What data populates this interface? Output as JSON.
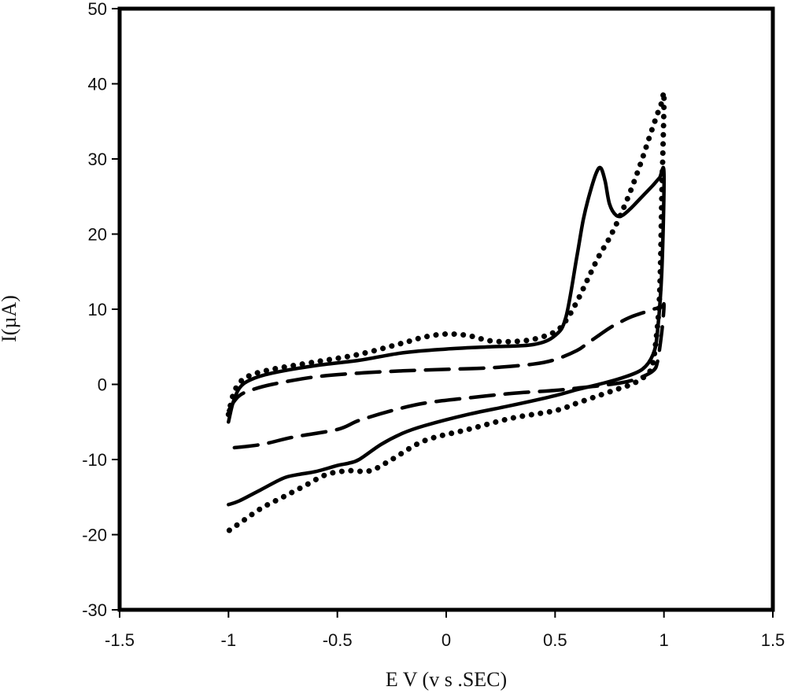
{
  "chart_data": {
    "type": "line",
    "xlabel": "E V (v s .SEC)",
    "ylabel": "I(µA)",
    "xlim": [
      -1.5,
      1.5
    ],
    "ylim": [
      -30,
      50
    ],
    "xticks": [
      "-1.5",
      "-1",
      "-0.5",
      "0",
      "0.5",
      "1",
      "1.5"
    ],
    "yticks": [
      "50",
      "40",
      "30",
      "20",
      "10",
      "0",
      "-10",
      "-20",
      "-30"
    ],
    "grid": false,
    "legend": "none",
    "series": [
      {
        "style": "solid",
        "x": [
          -1.0,
          -0.98,
          -0.95,
          -0.9,
          -0.8,
          -0.6,
          -0.4,
          -0.2,
          0.0,
          0.2,
          0.4,
          0.5,
          0.55,
          0.6,
          0.63,
          0.66,
          0.69,
          0.71,
          0.73,
          0.75,
          0.78,
          0.81,
          0.85,
          0.9,
          0.95,
          0.98,
          1.0,
          0.99,
          0.97,
          0.95,
          0.9,
          0.8,
          0.7,
          0.6,
          0.5,
          0.3,
          0.1,
          -0.1,
          -0.2,
          -0.3,
          -0.4,
          -0.45,
          -0.5,
          -0.6,
          -0.68,
          -0.75,
          -0.85,
          -0.95,
          -1.0
        ],
        "y": [
          -5.0,
          -2.5,
          -0.5,
          0.6,
          1.5,
          2.5,
          3.2,
          4.2,
          4.7,
          5.0,
          5.3,
          6.5,
          9.0,
          17.0,
          22.0,
          25.5,
          28.2,
          28.8,
          27.0,
          24.0,
          22.5,
          22.5,
          23.5,
          25.0,
          26.5,
          27.5,
          28.0,
          15.0,
          7.0,
          4.0,
          2.0,
          0.8,
          0.0,
          -0.7,
          -1.5,
          -2.8,
          -4.0,
          -5.5,
          -6.5,
          -8.0,
          -10.0,
          -10.5,
          -10.8,
          -11.6,
          -12.0,
          -12.5,
          -14.0,
          -15.5,
          -16.0
        ]
      },
      {
        "style": "dotted",
        "x": [
          -1.0,
          -0.98,
          -0.95,
          -0.9,
          -0.8,
          -0.6,
          -0.4,
          -0.2,
          -0.1,
          0.0,
          0.1,
          0.2,
          0.3,
          0.4,
          0.5,
          0.55,
          0.6,
          0.65,
          0.7,
          0.75,
          0.8,
          0.85,
          0.9,
          0.94,
          0.97,
          0.99,
          1.0,
          0.99,
          0.98,
          0.96,
          0.94,
          0.9,
          0.85,
          0.8,
          0.7,
          0.6,
          0.5,
          0.3,
          0.1,
          -0.1,
          -0.25,
          -0.35,
          -0.45,
          -0.55,
          -0.65,
          -0.75,
          -0.85,
          -0.95,
          -1.0
        ],
        "y": [
          -4.0,
          -1.5,
          0.2,
          1.2,
          2.0,
          3.0,
          4.0,
          5.5,
          6.3,
          6.7,
          6.5,
          5.8,
          5.7,
          6.0,
          7.0,
          8.5,
          11.0,
          14.0,
          17.0,
          19.5,
          22.5,
          26.0,
          30.0,
          33.5,
          36.0,
          37.5,
          38.0,
          25.0,
          12.0,
          5.0,
          2.0,
          0.8,
          0.0,
          -0.5,
          -1.5,
          -2.5,
          -3.5,
          -4.5,
          -6.0,
          -7.5,
          -10.0,
          -11.5,
          -11.5,
          -12.0,
          -13.5,
          -15.0,
          -16.5,
          -18.5,
          -19.5
        ]
      },
      {
        "style": "dashed",
        "x": [
          -1.0,
          -0.98,
          -0.95,
          -0.9,
          -0.8,
          -0.6,
          -0.4,
          -0.2,
          0.0,
          0.2,
          0.4,
          0.5,
          0.6,
          0.65,
          0.7,
          0.75,
          0.8,
          0.85,
          0.9,
          0.95,
          0.99,
          1.0,
          0.99,
          0.97,
          0.95,
          0.9,
          0.85,
          0.8,
          0.7,
          0.6,
          0.5,
          0.3,
          0.1,
          -0.1,
          -0.25,
          -0.4,
          -0.5,
          -0.7,
          -0.85,
          -1.0
        ],
        "y": [
          -3.5,
          -2.5,
          -1.5,
          -0.8,
          0.0,
          1.0,
          1.5,
          1.8,
          2.0,
          2.2,
          2.7,
          3.3,
          4.5,
          5.5,
          6.5,
          7.5,
          8.3,
          9.0,
          9.5,
          10.0,
          10.3,
          10.5,
          7.0,
          3.0,
          1.8,
          1.0,
          0.5,
          0.2,
          -0.2,
          -0.5,
          -0.8,
          -1.2,
          -1.8,
          -2.5,
          -3.5,
          -4.8,
          -6.0,
          -7.0,
          -8.0,
          -8.5
        ]
      }
    ]
  }
}
